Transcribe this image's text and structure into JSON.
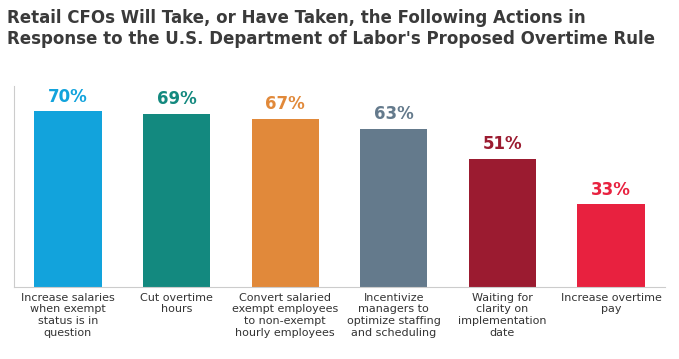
{
  "chart_data": {
    "type": "bar",
    "title": "Retail CFOs Will Take, or Have Taken, the Following Actions in Response to the U.S. Department of Labor's Proposed Overtime Rule",
    "categories": [
      "Increase salaries when exempt status is in question",
      "Cut overtime hours",
      "Convert salaried exempt employees to non-exempt hourly employees",
      "Incentivize managers to optimize staffing and scheduling",
      "Waiting for clarity on implementation date",
      "Increase overtime pay"
    ],
    "values": [
      70,
      69,
      67,
      63,
      51,
      33
    ],
    "value_labels": [
      "70%",
      "69%",
      "67%",
      "63%",
      "51%",
      "33%"
    ],
    "colors": [
      "#12a3dc",
      "#13897f",
      "#e1893a",
      "#647a8c",
      "#9b1b30",
      "#e8213f"
    ],
    "ylim": [
      0,
      80
    ],
    "yticks": [],
    "grid": false,
    "data_labels": true,
    "tick_labels": "x"
  }
}
